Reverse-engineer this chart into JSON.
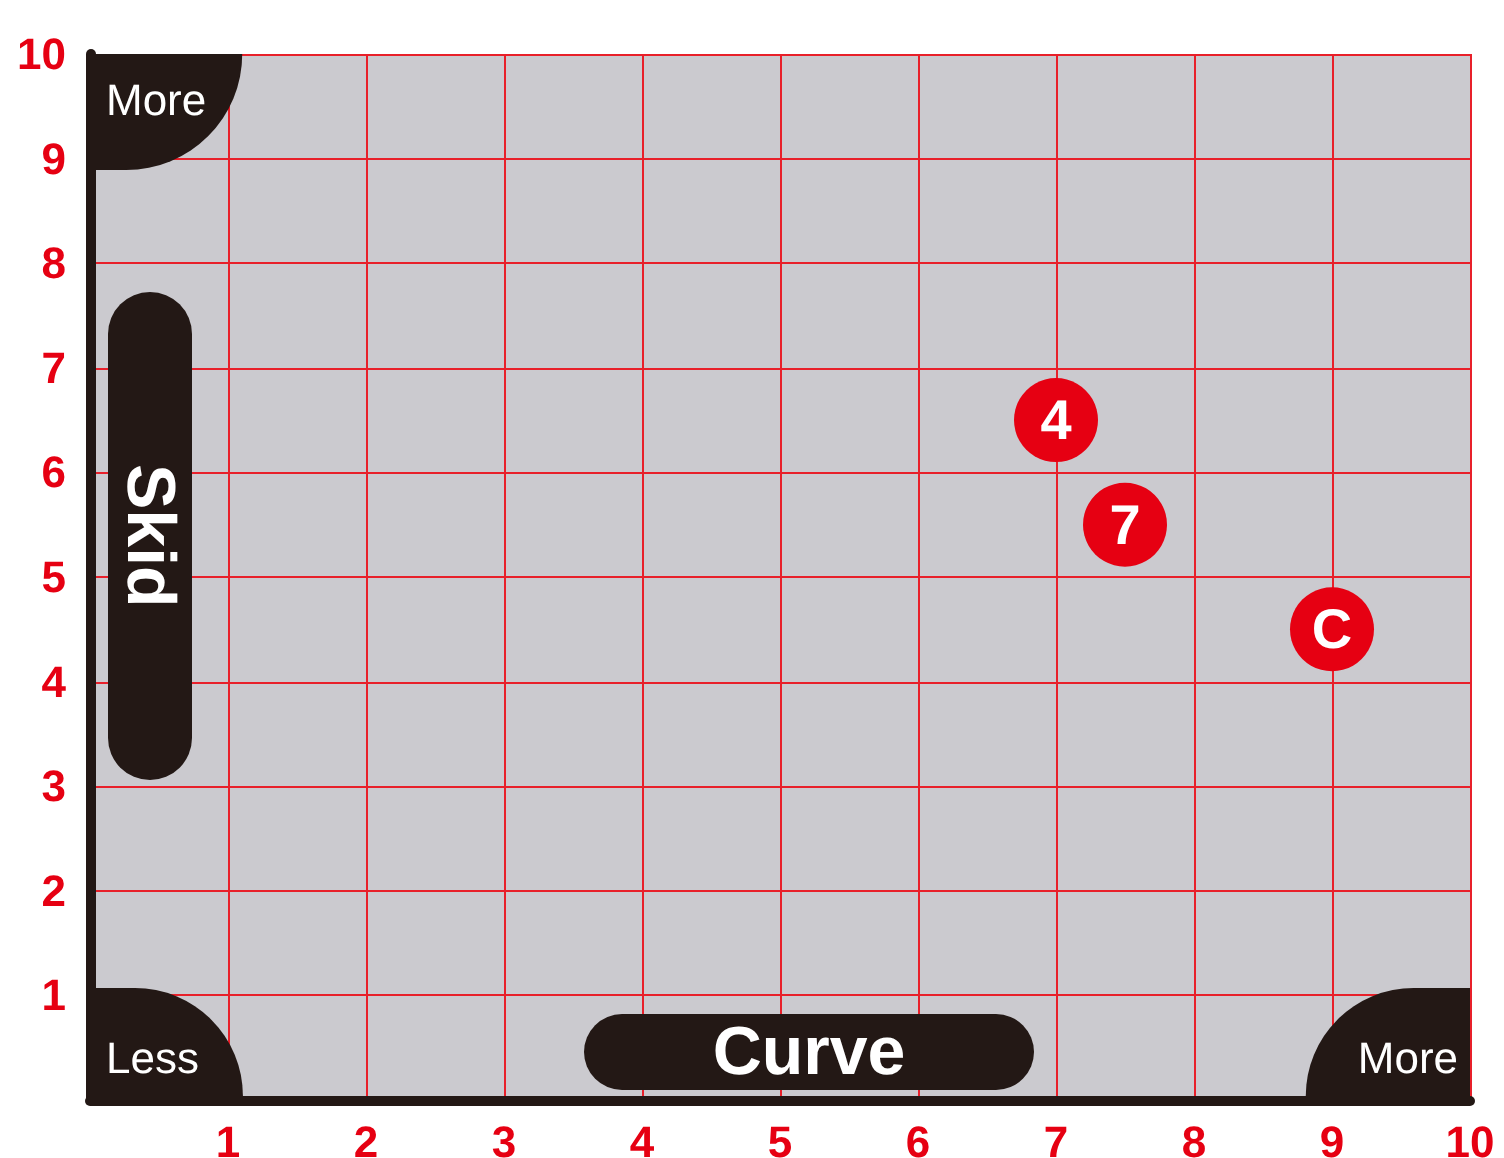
{
  "chart_data": {
    "type": "scatter",
    "xlabel": "Curve",
    "ylabel": "Skid",
    "series": [
      {
        "name": "4",
        "color": "#e60012",
        "x": [
          7.0
        ],
        "values": [
          6.5
        ]
      },
      {
        "name": "7",
        "color": "#e60012",
        "x": [
          7.5
        ],
        "values": [
          5.5
        ]
      },
      {
        "name": "C",
        "color": "#e60012",
        "x": [
          9.0
        ],
        "values": [
          4.5
        ]
      }
    ],
    "marker": "circle",
    "xlim": [
      0,
      10
    ],
    "ylim": [
      0,
      10
    ],
    "xticks": [
      1,
      2,
      3,
      4,
      5,
      6,
      7,
      8,
      9,
      10
    ],
    "yticks": [
      1,
      2,
      3,
      4,
      5,
      6,
      7,
      8,
      9,
      10
    ],
    "grid": true,
    "annotations": [
      "More",
      "Less",
      "More"
    ]
  }
}
